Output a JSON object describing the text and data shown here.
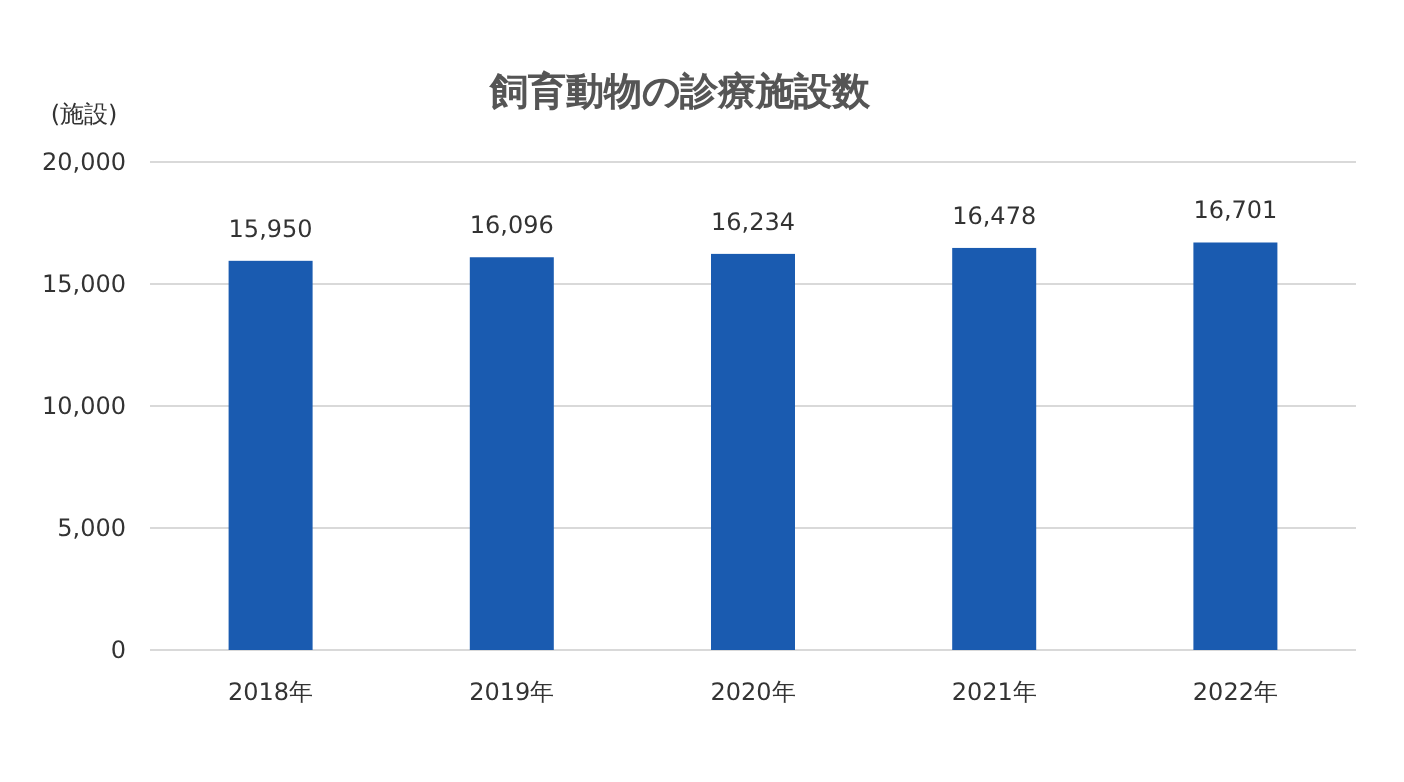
{
  "chart_data": {
    "type": "bar",
    "title": "飼育動物の診療施設数",
    "ylabel": "(施設)",
    "categories": [
      "2018年",
      "2019年",
      "2020年",
      "2021年",
      "2022年"
    ],
    "values": [
      15950,
      16096,
      16234,
      16478,
      16701
    ],
    "color": "#1a5bb0",
    "ylim": [
      0,
      20000
    ],
    "yticks": [
      {
        "value": 0,
        "label": "0"
      },
      {
        "value": 5000,
        "label": "5,000"
      },
      {
        "value": 10000,
        "label": "10,000"
      },
      {
        "value": 15000,
        "label": "15,000"
      },
      {
        "value": 20000,
        "label": "20,000"
      }
    ],
    "value_labels": [
      "15,950",
      "16,096",
      "16,234",
      "16,478",
      "16,701"
    ],
    "grid": true
  }
}
